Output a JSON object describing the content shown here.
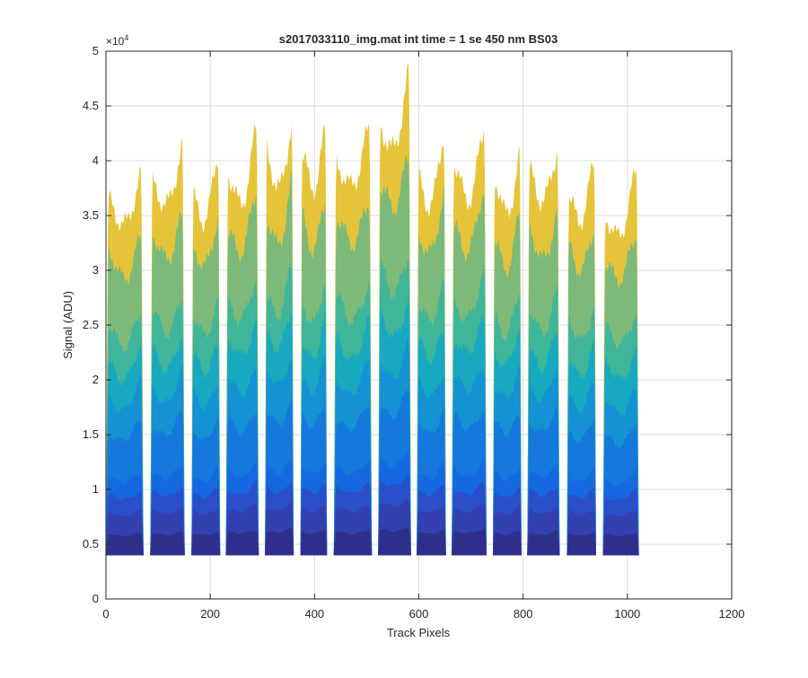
{
  "chart_data": {
    "type": "area",
    "title": "s2017033110_img.mat int time = 1 se  450 nm BS03",
    "xlabel": "Track Pixels",
    "ylabel": "Signal (ADU)",
    "xlim": [
      0,
      1200
    ],
    "ylim": [
      0,
      50000
    ],
    "x_ticks": [
      "0",
      "200",
      "400",
      "600",
      "800",
      "1000",
      "1200"
    ],
    "y_ticks": [
      "0",
      "0.5",
      "1",
      "1.5",
      "2",
      "2.5",
      "3",
      "3.5",
      "4",
      "4.5",
      "5"
    ],
    "y_multiplier_base": "×10",
    "y_multiplier_exp": "4",
    "grid": true,
    "baseline": 4000,
    "x_end": 1022,
    "tracks": [
      {
        "start": 0,
        "end": 72,
        "peak": 38000
      },
      {
        "start": 85,
        "end": 151,
        "peak": 40000
      },
      {
        "start": 164,
        "end": 219,
        "peak": 39000
      },
      {
        "start": 230,
        "end": 293,
        "peak": 41500
      },
      {
        "start": 305,
        "end": 360,
        "peak": 43000
      },
      {
        "start": 373,
        "end": 424,
        "peak": 42000
      },
      {
        "start": 437,
        "end": 510,
        "peak": 42000
      },
      {
        "start": 522,
        "end": 585,
        "peak": 46000
      },
      {
        "start": 596,
        "end": 652,
        "peak": 41000
      },
      {
        "start": 663,
        "end": 730,
        "peak": 42000
      },
      {
        "start": 742,
        "end": 797,
        "peak": 40000
      },
      {
        "start": 808,
        "end": 870,
        "peak": 40500
      },
      {
        "start": 884,
        "end": 940,
        "peak": 38500
      },
      {
        "start": 953,
        "end": 1022,
        "peak": 37500
      }
    ],
    "layer_fractions": [
      1.0,
      0.85,
      0.65,
      0.55,
      0.45,
      0.35,
      0.22,
      0.17,
      0.12,
      0.06
    ],
    "layer_colors": [
      "#e6c43a",
      "#7dba7a",
      "#3fb59a",
      "#17a9c0",
      "#1592d4",
      "#1478dc",
      "#1668e2",
      "#2a4fc8",
      "#3240b0",
      "#2e2f8a"
    ]
  }
}
